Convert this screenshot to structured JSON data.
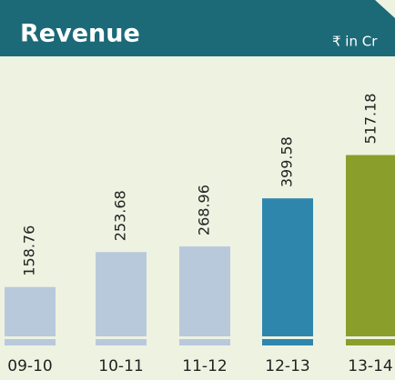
{
  "chart_data": {
    "type": "bar",
    "title": "Revenue",
    "subtitle": "₹ in Cr",
    "categories": [
      "09-10",
      "10-11",
      "11-12",
      "12-13",
      "13-14"
    ],
    "values": [
      158.76,
      253.68,
      268.96,
      399.58,
      517.18
    ],
    "colors": [
      "#b9c9dc",
      "#b9c9dc",
      "#b9c9dc",
      "#2f86ad",
      "#8a9e2c"
    ],
    "ylim": [
      0,
      600
    ]
  }
}
